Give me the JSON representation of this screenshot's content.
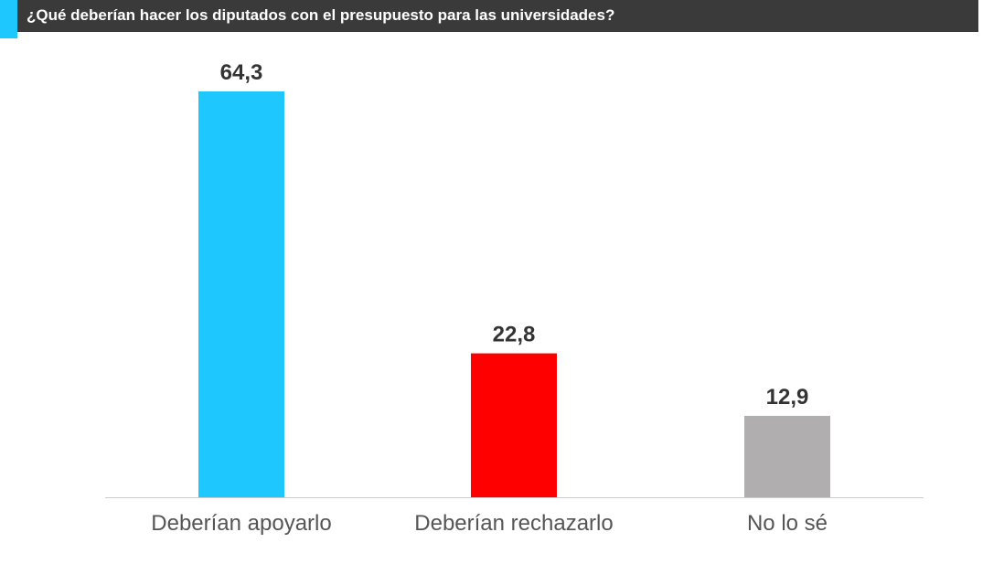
{
  "colors": {
    "accent": "#1ec8ff",
    "header_bg": "#3a3a3a"
  },
  "chart_data": {
    "type": "bar",
    "title": "¿Qué deberían hacer los diputados con el presupuesto para las universidades?",
    "categories": [
      "Deberían apoyarlo",
      "Deberían rechazarlo",
      "No lo sé"
    ],
    "values": [
      64.3,
      22.8,
      12.9
    ],
    "value_labels": [
      "64,3",
      "22,8",
      "12,9"
    ],
    "colors": [
      "#1ec8ff",
      "#ff0000",
      "#b0aeae"
    ],
    "xlabel": "",
    "ylabel": "",
    "ylim": [
      0,
      64.3
    ],
    "grid": false,
    "legend": "none"
  }
}
